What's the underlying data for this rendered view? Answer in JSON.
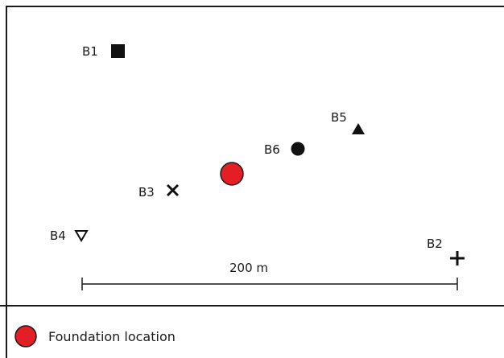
{
  "map": {
    "markers": [
      {
        "id": "B1",
        "label": "B1",
        "symbol": "filled-square"
      },
      {
        "id": "B2",
        "label": "B2",
        "symbol": "plus"
      },
      {
        "id": "B3",
        "label": "B3",
        "symbol": "cross"
      },
      {
        "id": "B4",
        "label": "B4",
        "symbol": "open-down-triangle"
      },
      {
        "id": "B5",
        "label": "B5",
        "symbol": "filled-up-triangle"
      },
      {
        "id": "B6",
        "label": "B6",
        "symbol": "filled-circle"
      }
    ],
    "foundation": {
      "symbol": "red-circle",
      "color": "#e31e24"
    },
    "scale_bar": {
      "label": "200 m"
    }
  },
  "legend": {
    "items": [
      {
        "symbol": "red-circle",
        "color": "#e31e24",
        "label": "Foundation location"
      }
    ]
  }
}
